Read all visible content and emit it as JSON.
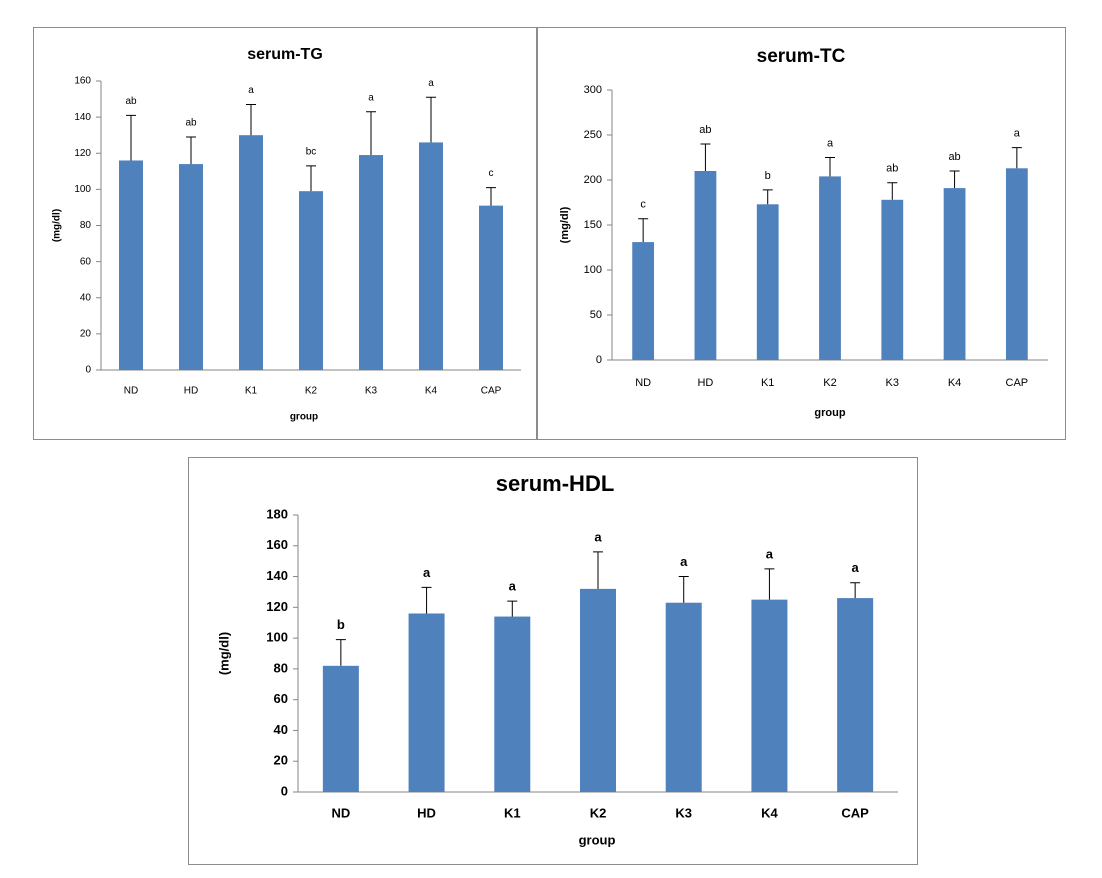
{
  "chart_data": [
    {
      "type": "bar",
      "title": "serum-TG",
      "xlabel": "group",
      "ylabel": "(mg/dl)",
      "color": "#4f81bd",
      "categories": [
        "ND",
        "HD",
        "K1",
        "K2",
        "K3",
        "K4",
        "CAP"
      ],
      "values": [
        116,
        114,
        130,
        99,
        119,
        126,
        91
      ],
      "errors": [
        25,
        15,
        17,
        14,
        24,
        25,
        10
      ],
      "annotations": [
        "ab",
        "ab",
        "a",
        "bc",
        "a",
        "a",
        "c"
      ],
      "ylim": [
        0,
        160
      ],
      "yticks": [
        0,
        20,
        40,
        60,
        80,
        100,
        120,
        140,
        160
      ]
    },
    {
      "type": "bar",
      "title": "serum-TC",
      "xlabel": "group",
      "ylabel": "(mg/dl)",
      "color": "#4f81bd",
      "categories": [
        "ND",
        "HD",
        "K1",
        "K2",
        "K3",
        "K4",
        "CAP"
      ],
      "values": [
        131,
        210,
        173,
        204,
        178,
        191,
        213
      ],
      "errors": [
        26,
        30,
        16,
        21,
        19,
        19,
        23
      ],
      "annotations": [
        "c",
        "ab",
        "b",
        "a",
        "ab",
        "ab",
        "a"
      ],
      "ylim": [
        0,
        300
      ],
      "yticks": [
        0,
        50,
        100,
        150,
        200,
        250,
        300
      ]
    },
    {
      "type": "bar",
      "title": "serum-HDL",
      "xlabel": "group",
      "ylabel": "(mg/dl)",
      "color": "#4f81bd",
      "categories": [
        "ND",
        "HD",
        "K1",
        "K2",
        "K3",
        "K4",
        "CAP"
      ],
      "values": [
        82,
        116,
        114,
        132,
        123,
        125,
        126
      ],
      "errors": [
        17,
        17,
        10,
        24,
        17,
        20,
        10
      ],
      "annotations": [
        "b",
        "a",
        "a",
        "a",
        "a",
        "a",
        "a"
      ],
      "ylim": [
        0,
        180
      ],
      "yticks": [
        0,
        20,
        40,
        60,
        80,
        100,
        120,
        140,
        160,
        180
      ]
    }
  ]
}
